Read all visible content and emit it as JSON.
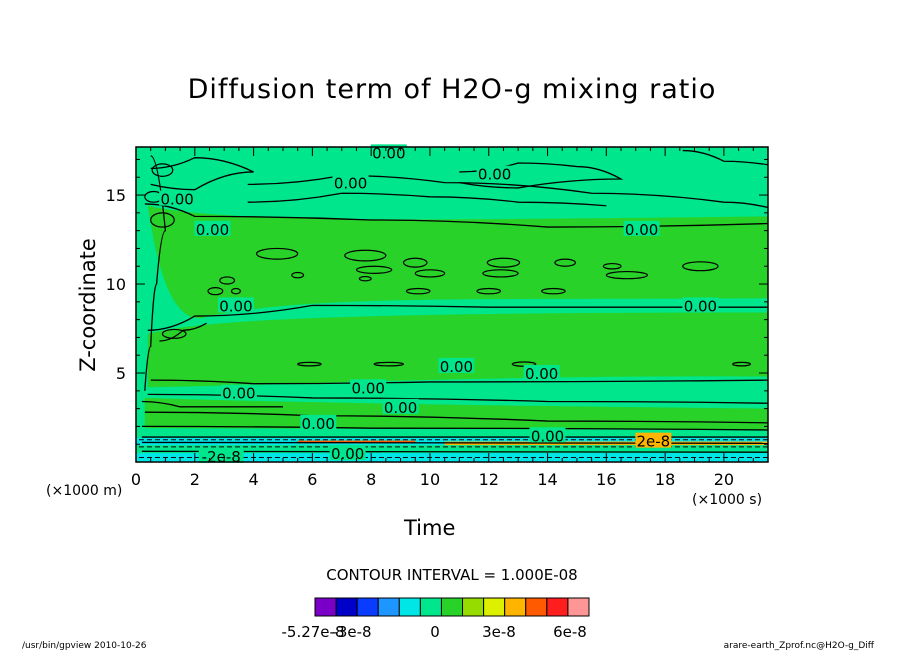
{
  "chart_data": {
    "type": "heatmap",
    "title": "Diffusion term of H2O-g mixing ratio",
    "xlabel": "Time",
    "ylabel": "Z-coordinate",
    "x_unit": "(×1000 s)",
    "y_unit": "(×1000 m)",
    "xlim": [
      0,
      21.5
    ],
    "ylim": [
      0,
      17.7
    ],
    "x_ticks": [
      0,
      2,
      4,
      6,
      8,
      10,
      12,
      14,
      16,
      18,
      20
    ],
    "y_ticks": [
      5,
      10,
      15
    ],
    "contour_interval": "CONTOUR INTERVAL = 1.000E-08",
    "colorbar": {
      "colors": [
        "#7a00c8",
        "#0000c8",
        "#0a3cff",
        "#1e96ff",
        "#00e6e6",
        "#00e68c",
        "#28d228",
        "#96dc00",
        "#dcf000",
        "#ffb400",
        "#ff5a00",
        "#ff1e1e",
        "#ff9696"
      ],
      "labels": [
        "-5.27e-8",
        "-3e-8",
        "0",
        "3e-8",
        "6e-8"
      ]
    },
    "contour_labels": [
      {
        "text": "0.00",
        "x": 8.6,
        "y": 17.4
      },
      {
        "text": "0.00",
        "x": 7.3,
        "y": 15.7
      },
      {
        "text": "0.00",
        "x": 12.2,
        "y": 16.2
      },
      {
        "text": "0.00",
        "x": 1.4,
        "y": 14.8
      },
      {
        "text": "0.00",
        "x": 2.6,
        "y": 13.1
      },
      {
        "text": "0.00",
        "x": 17.2,
        "y": 13.1
      },
      {
        "text": "0.00",
        "x": 3.4,
        "y": 8.8
      },
      {
        "text": "0.00",
        "x": 19.2,
        "y": 8.8
      },
      {
        "text": "0.00",
        "x": 10.9,
        "y": 5.4
      },
      {
        "text": "0.00",
        "x": 13.8,
        "y": 5.0
      },
      {
        "text": "0.00",
        "x": 3.5,
        "y": 3.9
      },
      {
        "text": "0.00",
        "x": 7.9,
        "y": 4.2
      },
      {
        "text": "0.00",
        "x": 9.0,
        "y": 3.1
      },
      {
        "text": "0.00",
        "x": 6.2,
        "y": 2.2
      },
      {
        "text": "0.00",
        "x": 14.0,
        "y": 1.5
      },
      {
        "text": "0.00",
        "x": 7.2,
        "y": 0.5
      },
      {
        "text": "-2e-8",
        "x": 2.9,
        "y": 0.35
      },
      {
        "text": "2e-8",
        "x": 17.6,
        "y": 1.2
      }
    ]
  },
  "footer": {
    "left": "/usr/bin/gpview   2010-10-26",
    "right": "arare-earth_Zprof.nc@H2O-g_Diff"
  }
}
